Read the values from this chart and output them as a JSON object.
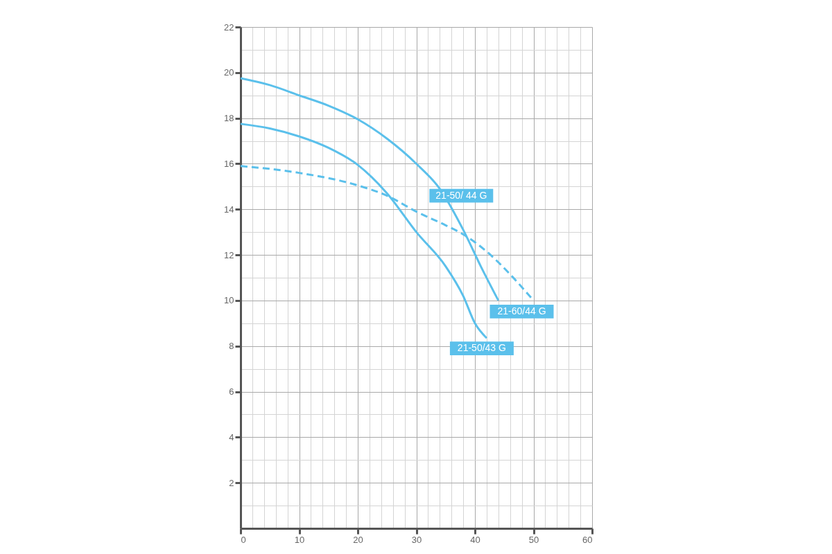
{
  "chart_data": {
    "type": "line",
    "xlim": [
      0,
      60
    ],
    "ylim": [
      0,
      22
    ],
    "xticks": [
      0,
      {
        "value": 2,
        "label": null
      },
      {
        "value": 4,
        "label": null
      },
      {
        "value": 6,
        "label": null
      },
      {
        "value": 8,
        "label": null
      },
      10,
      {
        "value": 12,
        "label": null
      },
      {
        "value": 14,
        "label": null
      },
      {
        "value": 16,
        "label": null
      },
      {
        "value": 18,
        "label": null
      },
      20,
      {
        "value": 22,
        "label": null
      },
      {
        "value": 24,
        "label": null
      },
      {
        "value": 26,
        "label": null
      },
      {
        "value": 28,
        "label": null
      },
      30,
      {
        "value": 32,
        "label": null
      },
      {
        "value": 34,
        "label": null
      },
      {
        "value": 36,
        "label": null
      },
      {
        "value": 38,
        "label": null
      },
      40,
      {
        "value": 42,
        "label": null
      },
      {
        "value": 44,
        "label": null
      },
      {
        "value": 46,
        "label": null
      },
      {
        "value": 48,
        "label": null
      },
      50,
      {
        "value": 52,
        "label": null
      },
      {
        "value": 54,
        "label": null
      },
      {
        "value": 56,
        "label": null
      },
      {
        "value": 58,
        "label": null
      },
      60
    ],
    "yticks": [
      {
        "value": 1,
        "label": null
      },
      2,
      {
        "value": 3,
        "label": null
      },
      4,
      {
        "value": 5,
        "label": null
      },
      6,
      {
        "value": 7,
        "label": null
      },
      8,
      {
        "value": 9,
        "label": null
      },
      10,
      {
        "value": 11,
        "label": null
      },
      12,
      {
        "value": 13,
        "label": null
      },
      14,
      {
        "value": 15,
        "label": null
      },
      16,
      {
        "value": 17,
        "label": null
      },
      18,
      {
        "value": 19,
        "label": null
      },
      20,
      {
        "value": 21,
        "label": null
      },
      22
    ],
    "grid": true,
    "marker": "none",
    "series": [
      {
        "color": "#5bc0eb",
        "line_style": "solid",
        "x": [
          0,
          5,
          10,
          15,
          20,
          25,
          30,
          34,
          38,
          41,
          44
        ],
        "values": [
          19.75,
          19.45,
          19.0,
          18.55,
          17.95,
          17.1,
          16.0,
          14.9,
          13.1,
          11.5,
          10.0
        ]
      },
      {
        "color": "#5bc0eb",
        "line_style": "solid",
        "x": [
          0,
          5,
          10,
          15,
          20,
          25,
          30,
          35,
          38,
          40,
          42
        ],
        "values": [
          17.75,
          17.55,
          17.2,
          16.7,
          15.95,
          14.7,
          13.0,
          11.5,
          10.2,
          9.0,
          8.35
        ]
      },
      {
        "color": "#5bc0eb",
        "line_style": "dashed",
        "x": [
          0,
          10,
          20,
          25,
          30,
          35,
          38,
          42,
          46,
          50
        ],
        "values": [
          15.9,
          15.6,
          15.05,
          14.6,
          13.9,
          13.3,
          12.9,
          12.15,
          11.15,
          10.0
        ]
      }
    ],
    "annotations": [
      {
        "text": "21-50/ 44 G",
        "x": 34,
        "y": 14.9
      },
      {
        "text": "21-60/44 G",
        "x": 50,
        "y": 10.0
      },
      {
        "text": "21-50/43 G",
        "x": 42,
        "y": 8.35
      }
    ]
  }
}
